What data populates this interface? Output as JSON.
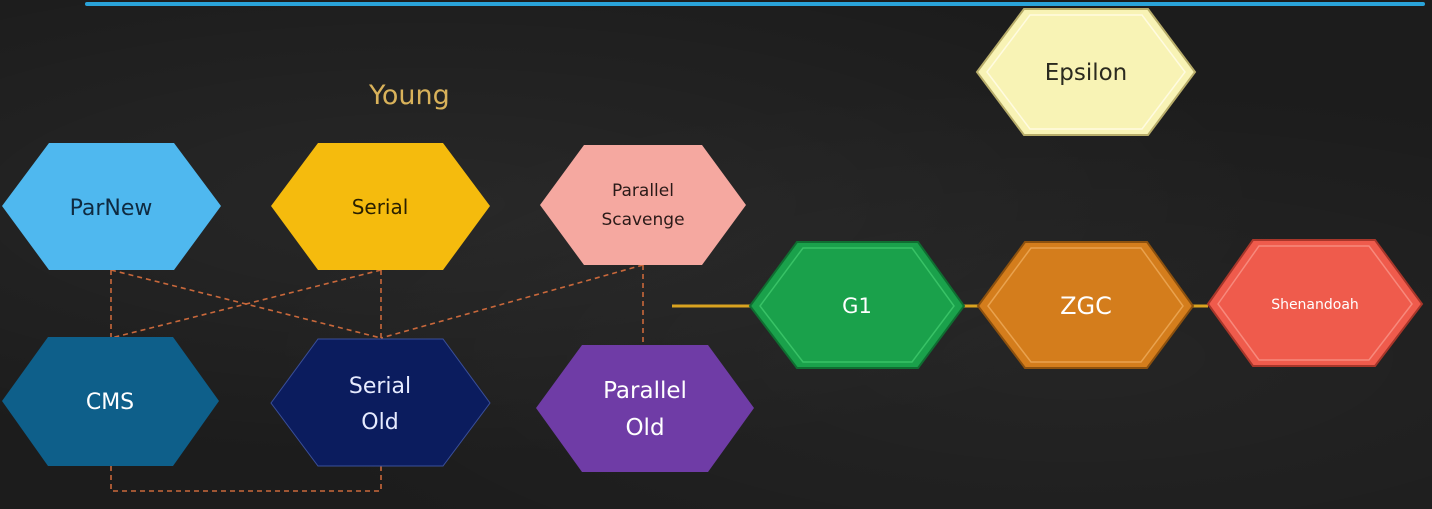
{
  "section_label": "Young",
  "collectors": {
    "parnew": "ParNew",
    "serial": "Serial",
    "parallel_scavenge": [
      "Parallel",
      "Scavenge"
    ],
    "cms": "CMS",
    "serial_old": [
      "Serial",
      "Old"
    ],
    "parallel_old": [
      "Parallel",
      "Old"
    ],
    "g1": "G1",
    "zgc": "ZGC",
    "shenandoah": "Shenandoah",
    "epsilon": "Epsilon"
  },
  "colors": {
    "parnew": "#4fb8ef",
    "serial": "#f5bb0d",
    "parallel_scavenge": "#f5a8a0",
    "cms": "#0e5f8a",
    "serial_old": "#0b1c5e",
    "parallel_old": "#6f3ca6",
    "g1": "#1aa14b",
    "zgc": "#d47d1c",
    "shenandoah": "#ef5b4c",
    "epsilon": "#f8f3b5",
    "dashed_link": "#c9683b",
    "solid_link": "#d9a320",
    "accent_line": "#2aa3d9"
  }
}
